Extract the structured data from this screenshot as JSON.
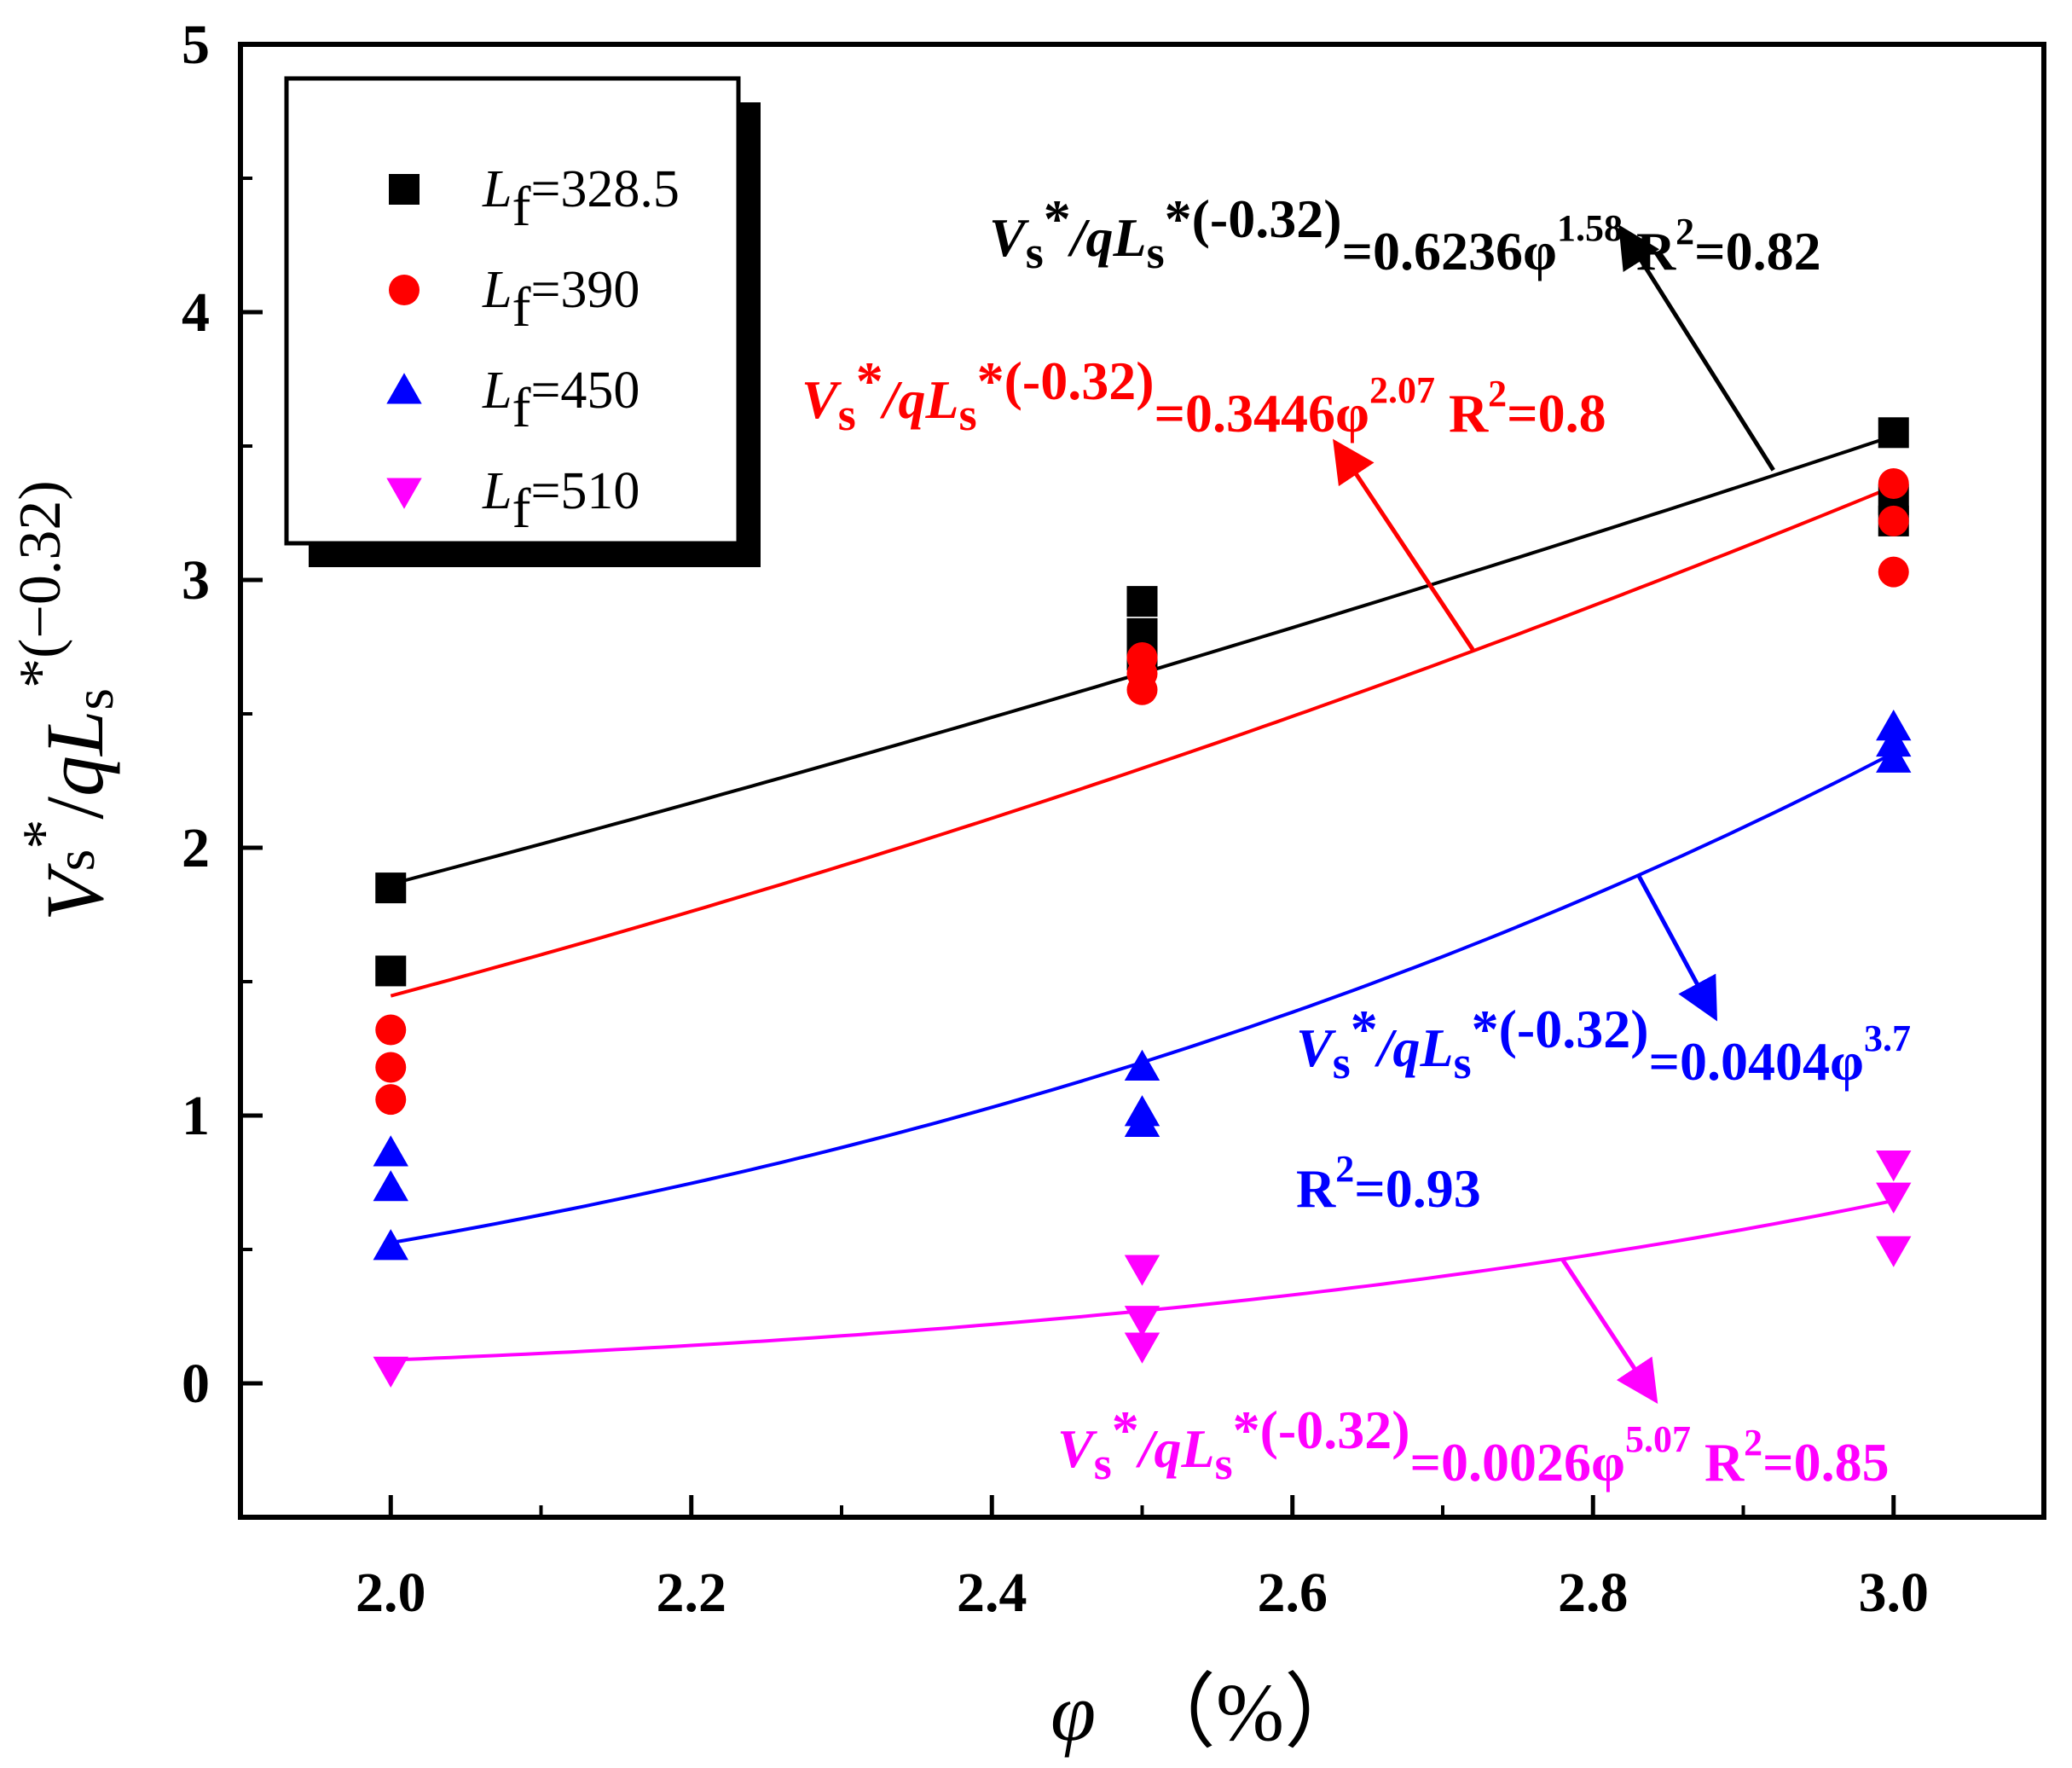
{
  "chart_data": {
    "type": "scatter",
    "xlabel": "φ （%）",
    "ylabel": "Vs*/qLs*(−0.32)",
    "xlim": [
      1.9,
      3.1
    ],
    "ylim": [
      -0.5,
      5
    ],
    "xticks": [
      2.0,
      2.2,
      2.4,
      2.6,
      2.8,
      3.0
    ],
    "xtick_labels": [
      "2.0",
      "2.2",
      "2.4",
      "2.6",
      "2.8",
      "3.0"
    ],
    "yticks": [
      0,
      1,
      2,
      3,
      4,
      5
    ],
    "ytick_labels": [
      "0",
      "1",
      "2",
      "3",
      "4",
      "5"
    ],
    "legend_position": "top-left",
    "series": [
      {
        "name": "Lf=328.5",
        "legend_var": "L",
        "legend_sub": "f",
        "legend_value": "=328.5",
        "color": "#000000",
        "marker": "square",
        "points": [
          [
            2.0,
            1.85
          ],
          [
            2.0,
            1.54
          ],
          [
            2.5,
            2.92
          ],
          [
            2.5,
            2.8
          ],
          [
            2.5,
            2.72
          ],
          [
            3.0,
            3.55
          ],
          [
            3.0,
            3.3
          ],
          [
            3.0,
            3.22
          ]
        ],
        "fit": {
          "a": 0.6236,
          "b": 1.58
        },
        "equation": {
          "lhs_mid": "/q",
          "exp": "*(-0.32)",
          "rhs": "=0.6236φ",
          "rhs_exp": "1.58",
          "r2_label": "R",
          "r2_sup": "2",
          "r2_value": "=0.82"
        }
      },
      {
        "name": "Lf=390",
        "legend_var": "L",
        "legend_sub": "f",
        "legend_value": "=390",
        "color": "#ff0000",
        "marker": "circle",
        "points": [
          [
            2.0,
            1.32
          ],
          [
            2.0,
            1.18
          ],
          [
            2.0,
            1.06
          ],
          [
            2.5,
            2.71
          ],
          [
            2.5,
            2.65
          ],
          [
            2.5,
            2.59
          ],
          [
            3.0,
            3.36
          ],
          [
            3.0,
            3.22
          ],
          [
            3.0,
            3.03
          ]
        ],
        "fit": {
          "a": 0.3446,
          "b": 2.07
        },
        "equation": {
          "lhs_mid": "/q",
          "exp": "*(-0.32)",
          "rhs": "=0.3446φ",
          "rhs_exp": "2.07",
          "r2_label": "R",
          "r2_sup": "2",
          "r2_value": "=0.8"
        }
      },
      {
        "name": "Lf=450",
        "legend_var": "L",
        "legend_sub": "f",
        "legend_value": "=450",
        "color": "#0000ff",
        "marker": "triangle-up",
        "points": [
          [
            2.0,
            0.86
          ],
          [
            2.0,
            0.73
          ],
          [
            2.0,
            0.51
          ],
          [
            2.5,
            1.18
          ],
          [
            2.5,
            1.01
          ],
          [
            2.5,
            0.97
          ],
          [
            3.0,
            2.45
          ],
          [
            3.0,
            2.39
          ],
          [
            3.0,
            2.33
          ]
        ],
        "fit": {
          "a": 0.0404,
          "b": 3.7
        },
        "equation": {
          "lhs_mid": "/q",
          "exp": "*(-0.32)",
          "rhs": "=0.0404φ",
          "rhs_exp": "3.7",
          "r2_label": "R",
          "r2_sup": "2",
          "r2_value": "=0.93"
        }
      },
      {
        "name": "Lf=510",
        "legend_var": "L",
        "legend_sub": "f",
        "legend_value": "=510",
        "color": "#ff00ff",
        "marker": "triangle-down",
        "points": [
          [
            2.0,
            0.05
          ],
          [
            2.5,
            0.43
          ],
          [
            2.5,
            0.24
          ],
          [
            2.5,
            0.14
          ],
          [
            3.0,
            0.82
          ],
          [
            3.0,
            0.7
          ],
          [
            3.0,
            0.5
          ]
        ],
        "fit": {
          "a": 0.0026,
          "b": 5.07
        },
        "equation": {
          "lhs_mid": "/q",
          "exp": "*(-0.32)",
          "rhs": "=0.0026φ",
          "rhs_exp": "5.07",
          "r2_label": "R",
          "r2_sup": "2",
          "r2_value": "=0.85"
        }
      }
    ],
    "annotations": [
      {
        "series": 0,
        "arrow_from": [
          2.92,
          3.41
        ],
        "arrow_to": [
          2.82,
          4.3
        ]
      },
      {
        "series": 1,
        "arrow_from": [
          2.72,
          2.74
        ],
        "arrow_to": [
          2.63,
          3.5
        ]
      },
      {
        "series": 2,
        "arrow_from": [
          2.83,
          1.9
        ],
        "arrow_to": [
          2.88,
          1.38
        ]
      },
      {
        "series": 3,
        "arrow_from": [
          2.78,
          0.46
        ],
        "arrow_to": [
          2.84,
          -0.05
        ]
      }
    ]
  }
}
